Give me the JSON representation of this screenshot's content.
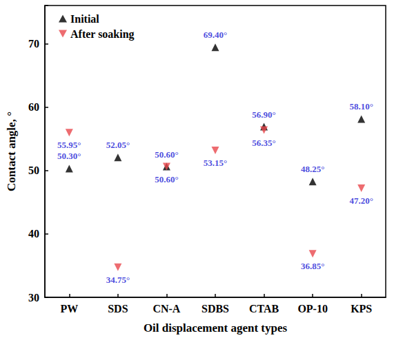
{
  "chart_data": {
    "type": "scatter",
    "x_label": "Oil displacement agent types",
    "y_label": "Contact angle, °",
    "categories": [
      "PW",
      "SDS",
      "CN-A",
      "SDBS",
      "CTAB",
      "OP-10",
      "KPS"
    ],
    "series": [
      {
        "name": "Initial",
        "color": "#000000",
        "marker": "triangle-up",
        "values": [
          50.3,
          52.05,
          50.6,
          69.4,
          56.9,
          48.25,
          58.1
        ],
        "value_labels": [
          "50.30°",
          "52.05°",
          "50.60°",
          "69.40°",
          "56.90°",
          "48.25°",
          "58.10°"
        ]
      },
      {
        "name": "After soaking",
        "color": "#e8474c",
        "marker": "triangle-down",
        "values": [
          55.95,
          34.75,
          50.6,
          53.15,
          56.35,
          36.85,
          47.2
        ],
        "value_labels": [
          "55.95°",
          "34.75°",
          "50.60°",
          "53.15°",
          "56.35°",
          "36.85°",
          "47.20°"
        ]
      }
    ],
    "ylim": [
      30,
      76
    ],
    "yticks": [
      30,
      40,
      50,
      60,
      70
    ],
    "grid": false,
    "legend": "upper left",
    "data_labels": true
  }
}
